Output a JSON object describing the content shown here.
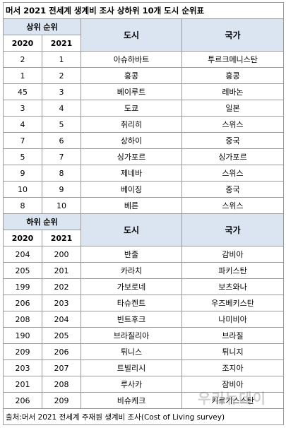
{
  "title": "머서 2021 전세계 생계비 조사 상하위 10개 도시 순위표",
  "top_section": {
    "rank_header": "상위 순위",
    "city_header": "도시",
    "country_header": "국가",
    "year_a": "2020",
    "year_b": "2021",
    "rows": [
      {
        "r2020": "2",
        "r2021": "1",
        "city": "아슈하바트",
        "country": "투르크메니스탄"
      },
      {
        "r2020": "1",
        "r2021": "2",
        "city": "홍콩",
        "country": "홍콩"
      },
      {
        "r2020": "45",
        "r2021": "3",
        "city": "베이루트",
        "country": "레바논"
      },
      {
        "r2020": "3",
        "r2021": "4",
        "city": "도쿄",
        "country": "일본"
      },
      {
        "r2020": "4",
        "r2021": "5",
        "city": "취리히",
        "country": "스위스"
      },
      {
        "r2020": "7",
        "r2021": "6",
        "city": "상하이",
        "country": "중국"
      },
      {
        "r2020": "5",
        "r2021": "7",
        "city": "싱가포르",
        "country": "싱가포르"
      },
      {
        "r2020": "9",
        "r2021": "8",
        "city": "제네바",
        "country": "스위스"
      },
      {
        "r2020": "10",
        "r2021": "9",
        "city": "베이징",
        "country": "중국"
      },
      {
        "r2020": "8",
        "r2021": "10",
        "city": "베른",
        "country": "스위스"
      }
    ]
  },
  "bottom_section": {
    "rank_header": "하위 순위",
    "city_header": "도시",
    "country_header": "국가",
    "year_a": "2020",
    "year_b": "2021",
    "rows": [
      {
        "r2020": "204",
        "r2021": "200",
        "city": "반줄",
        "country": "감비아"
      },
      {
        "r2020": "205",
        "r2021": "201",
        "city": "카라치",
        "country": "파키스탄"
      },
      {
        "r2020": "199",
        "r2021": "202",
        "city": "가보로네",
        "country": "보츠와나"
      },
      {
        "r2020": "206",
        "r2021": "203",
        "city": "타슈켄트",
        "country": "우즈베키스탄"
      },
      {
        "r2020": "208",
        "r2021": "204",
        "city": "빈트후크",
        "country": "나미비아"
      },
      {
        "r2020": "190",
        "r2021": "205",
        "city": "브라질리아",
        "country": "브라질"
      },
      {
        "r2020": "209",
        "r2021": "206",
        "city": "튀니스",
        "country": "튀니지"
      },
      {
        "r2020": "203",
        "r2021": "207",
        "city": "트빌리시",
        "country": "조지아"
      },
      {
        "r2020": "201",
        "r2021": "208",
        "city": "루사카",
        "country": "잠비아"
      },
      {
        "r2020": "206",
        "r2021": "209",
        "city": "비슈케크",
        "country": "키르기스스탄"
      }
    ]
  },
  "source": "출처:머서 2021 전세계 주재원 생계비 조사(Cost of Living survey)",
  "watermark": "우리뉴데이"
}
